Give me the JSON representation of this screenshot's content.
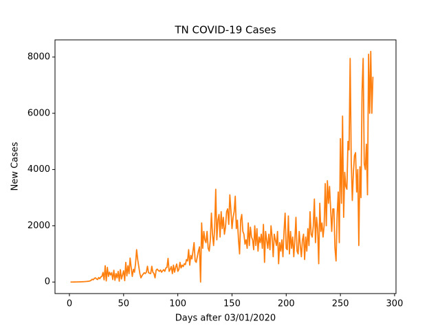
{
  "chart_data": {
    "type": "line",
    "title": "TN COVID-19 Cases",
    "xlabel": "Days after 03/01/2020",
    "ylabel": "New Cases",
    "color": "#ff7f0e",
    "xlim": [
      -13.3,
      301.3
    ],
    "xticks": [
      0,
      50,
      100,
      150,
      200,
      250,
      300
    ],
    "ylim": [
      -410,
      8610
    ],
    "yticks": [
      0,
      2000,
      4000,
      6000,
      8000
    ],
    "x": [
      1,
      2,
      3,
      4,
      5,
      6,
      7,
      8,
      9,
      10,
      11,
      12,
      13,
      14,
      15,
      16,
      17,
      18,
      19,
      20,
      21,
      22,
      23,
      24,
      25,
      26,
      27,
      28,
      29,
      30,
      31,
      32,
      33,
      34,
      35,
      36,
      37,
      38,
      39,
      40,
      41,
      42,
      43,
      44,
      45,
      46,
      47,
      48,
      49,
      50,
      51,
      52,
      53,
      54,
      55,
      56,
      57,
      58,
      59,
      60,
      61,
      62,
      63,
      64,
      65,
      66,
      67,
      68,
      69,
      70,
      71,
      72,
      73,
      74,
      75,
      76,
      77,
      78,
      79,
      80,
      81,
      82,
      83,
      84,
      85,
      86,
      87,
      88,
      89,
      90,
      91,
      92,
      93,
      94,
      95,
      96,
      97,
      98,
      99,
      100,
      101,
      102,
      103,
      104,
      105,
      106,
      107,
      108,
      109,
      110,
      111,
      112,
      113,
      114,
      115,
      116,
      117,
      118,
      119,
      120,
      121,
      122,
      123,
      124,
      125,
      126,
      127,
      128,
      129,
      130,
      131,
      132,
      133,
      134,
      135,
      136,
      137,
      138,
      139,
      140,
      141,
      142,
      143,
      144,
      145,
      146,
      147,
      148,
      149,
      150,
      151,
      152,
      153,
      154,
      155,
      156,
      157,
      158,
      159,
      160,
      161,
      162,
      163,
      164,
      165,
      166,
      167,
      168,
      169,
      170,
      171,
      172,
      173,
      174,
      175,
      176,
      177,
      178,
      179,
      180,
      181,
      182,
      183,
      184,
      185,
      186,
      187,
      188,
      189,
      190,
      191,
      192,
      193,
      194,
      195,
      196,
      197,
      198,
      199,
      200,
      201,
      202,
      203,
      204,
      205,
      206,
      207,
      208,
      209,
      210,
      211,
      212,
      213,
      214,
      215,
      216,
      217,
      218,
      219,
      220,
      221,
      222,
      223,
      224,
      225,
      226,
      227,
      228,
      229,
      230,
      231,
      232,
      233,
      234,
      235,
      236,
      237,
      238,
      239,
      240,
      241,
      242,
      243,
      244,
      245,
      246,
      247,
      248,
      249,
      250,
      251,
      252,
      253,
      254,
      255,
      256,
      257,
      258,
      259,
      260,
      261,
      262,
      263,
      264,
      265,
      266,
      267,
      268,
      269,
      270,
      271,
      272,
      273,
      274,
      275,
      276,
      277,
      278,
      279,
      280
    ],
    "values": [
      0,
      0,
      0,
      1,
      1,
      2,
      3,
      5,
      5,
      7,
      8,
      10,
      12,
      15,
      18,
      20,
      25,
      30,
      40,
      60,
      100,
      80,
      130,
      150,
      110,
      90,
      160,
      120,
      180,
      200,
      340,
      80,
      580,
      40,
      520,
      200,
      350,
      250,
      330,
      90,
      420,
      60,
      300,
      150,
      380,
      30,
      440,
      110,
      250,
      400,
      50,
      700,
      220,
      580,
      300,
      850,
      500,
      200,
      450,
      350,
      650,
      1150,
      800,
      550,
      300,
      150,
      230,
      280,
      330,
      300,
      350,
      560,
      330,
      310,
      300,
      560,
      350,
      300,
      150,
      420,
      460,
      410,
      380,
      430,
      350,
      400,
      440,
      380,
      500,
      520,
      840,
      380,
      450,
      550,
      300,
      600,
      350,
      520,
      640,
      380,
      450,
      700,
      500,
      600,
      550,
      650,
      620,
      800,
      750,
      1150,
      600,
      950,
      820,
      1100,
      1400,
      750,
      700,
      900,
      1100,
      1250,
      0,
      2100,
      1200,
      1800,
      1500,
      1400,
      1800,
      1200,
      1100,
      1500,
      2450,
      1700,
      1300,
      1900,
      3300,
      1500,
      2200,
      2400,
      1600,
      2500,
      1900,
      2300,
      1700,
      1950,
      2500,
      2600,
      2050,
      3100,
      2550,
      1900,
      2300,
      2500,
      3050,
      1900,
      2200,
      1500,
      1000,
      2200,
      2400,
      1800,
      1700,
      1350,
      1500,
      1200,
      2100,
      1300,
      1950,
      1600,
      1500,
      1150,
      2000,
      1300,
      1900,
      1100,
      1600,
      1400,
      1700,
      1200,
      2050,
      700,
      1800,
      1500,
      1200,
      1700,
      1150,
      2000,
      1600,
      900,
      1700,
      1500,
      1300,
      1800,
      650,
      1400,
      1100,
      1500,
      900,
      1800,
      2450,
      1200,
      1150,
      2350,
      1000,
      1800,
      1200,
      1600,
      900,
      1500,
      2300,
      1100,
      1000,
      1800,
      1300,
      900,
      1500,
      1700,
      800,
      1600,
      1100,
      1900,
      1300,
      2500,
      1700,
      1600,
      2000,
      2950,
      1400,
      2300,
      1900,
      650,
      2800,
      1800,
      2100,
      1600,
      2000,
      3500,
      2000,
      3600,
      2800,
      3400,
      2600,
      1800,
      2600,
      2600,
      1200,
      750,
      2400,
      3200,
      1400,
      5100,
      2800,
      5900,
      2300,
      3900,
      3400,
      3300,
      5000,
      4700,
      7950,
      4300,
      2900,
      3900,
      4500,
      4600,
      3200,
      4000,
      1300,
      4100,
      3000,
      6800,
      7950,
      4200,
      4000,
      4900,
      3100,
      8100,
      6000,
      8200,
      6000,
      7300
    ]
  }
}
